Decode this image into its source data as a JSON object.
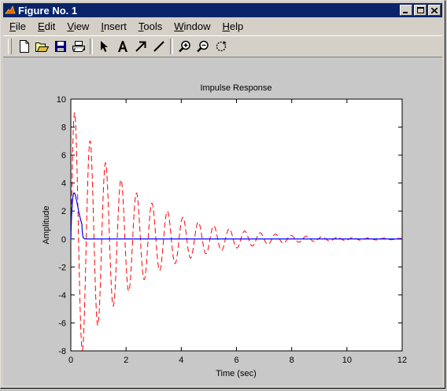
{
  "window": {
    "title": "Figure No. 1",
    "minimize_icon": "minimize-icon",
    "maximize_icon": "maximize-icon",
    "close_icon": "close-icon"
  },
  "menu": {
    "items": [
      {
        "accel": "F",
        "rest": "ile"
      },
      {
        "accel": "E",
        "rest": "dit"
      },
      {
        "accel": "V",
        "rest": "iew"
      },
      {
        "accel": "I",
        "rest": "nsert"
      },
      {
        "accel": "T",
        "rest": "ools"
      },
      {
        "accel": "W",
        "rest": "indow"
      },
      {
        "accel": "H",
        "rest": "elp"
      }
    ]
  },
  "toolbar": {
    "icons": [
      "new-file-icon",
      "open-folder-icon",
      "save-icon",
      "print-icon",
      "select-arrow-icon",
      "insert-text-icon",
      "insert-arrow-icon",
      "insert-line-icon",
      "zoom-in-icon",
      "zoom-out-icon",
      "rotate-3d-icon"
    ]
  },
  "chart_data": {
    "type": "line",
    "title": "Impulse Response",
    "xlabel": "Time (sec)",
    "ylabel": "Amplitude",
    "xlim": [
      0,
      12
    ],
    "ylim": [
      -8,
      10
    ],
    "xticks": [
      "0",
      "2",
      "4",
      "6",
      "8",
      "10",
      "12"
    ],
    "yticks": [
      "-8",
      "-6",
      "-4",
      "-2",
      "0",
      "2",
      "4",
      "6",
      "8",
      "10"
    ],
    "grid": false,
    "series": [
      {
        "style": "dashed",
        "color": "#ff0000",
        "model": "damped sinusoid",
        "amplitude": 9.6,
        "decay_rate": 0.45,
        "period_sec": 0.56,
        "phase_peak_sec": 0.14
      },
      {
        "style": "solid",
        "color": "#0000ff",
        "model": "fast pulse",
        "peak": 3.3,
        "peak_time_sec": 0.12,
        "settle_time_sec": 0.4
      }
    ]
  }
}
